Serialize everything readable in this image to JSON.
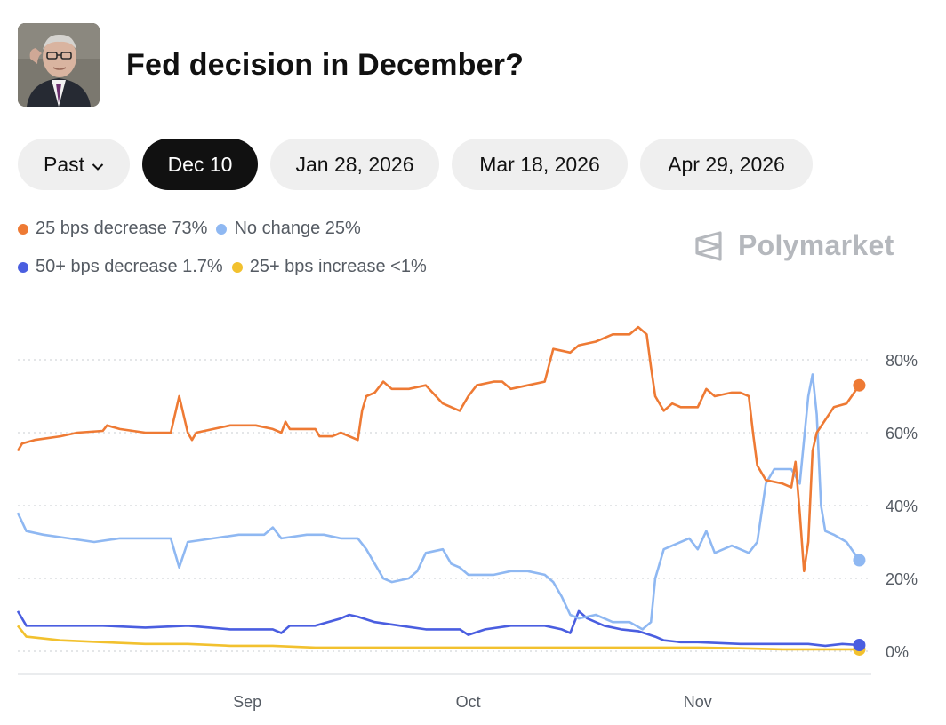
{
  "header": {
    "title": "Fed decision in December?",
    "avatar_alt": "Jerome Powell portrait"
  },
  "tabs": [
    {
      "label": "Past",
      "has_chevron": true,
      "active": false
    },
    {
      "label": "Dec 10",
      "active": true
    },
    {
      "label": "Jan 28, 2026",
      "active": false
    },
    {
      "label": "Mar 18, 2026",
      "active": false
    },
    {
      "label": "Apr 29, 2026",
      "active": false
    }
  ],
  "legend": [
    {
      "label": "25 bps decrease 73%",
      "color": "#ee7a34"
    },
    {
      "label": "No change 25%",
      "color": "#8fb8f2"
    },
    {
      "label": "50+ bps decrease 1.7%",
      "color": "#4a5ee0"
    },
    {
      "label": "25+ bps increase <1%",
      "color": "#f2c12e"
    }
  ],
  "brand": {
    "name": "Polymarket",
    "icon": "polymarket-logo-icon"
  },
  "chart_data": {
    "type": "line",
    "title": "Fed decision in December?",
    "y_ticks": [
      "80%",
      "60%",
      "40%",
      "20%",
      "0%"
    ],
    "ylim": [
      0,
      100
    ],
    "x_ticks": [
      {
        "label": "Sep",
        "t": 0.27
      },
      {
        "label": "Oct",
        "t": 0.53
      },
      {
        "label": "Nov",
        "t": 0.8
      }
    ],
    "grid": true,
    "series": [
      {
        "name": "25 bps decrease",
        "color": "#ee7a34",
        "last": 73,
        "points": [
          [
            0,
            55
          ],
          [
            0.005,
            57
          ],
          [
            0.02,
            58
          ],
          [
            0.05,
            59
          ],
          [
            0.07,
            60
          ],
          [
            0.1,
            60.5
          ],
          [
            0.105,
            62
          ],
          [
            0.12,
            61
          ],
          [
            0.15,
            60
          ],
          [
            0.18,
            60
          ],
          [
            0.19,
            70
          ],
          [
            0.2,
            60
          ],
          [
            0.205,
            58
          ],
          [
            0.21,
            60
          ],
          [
            0.23,
            61
          ],
          [
            0.25,
            62
          ],
          [
            0.28,
            62
          ],
          [
            0.3,
            61
          ],
          [
            0.31,
            60
          ],
          [
            0.315,
            63
          ],
          [
            0.32,
            61
          ],
          [
            0.35,
            61
          ],
          [
            0.355,
            59
          ],
          [
            0.37,
            59
          ],
          [
            0.38,
            60
          ],
          [
            0.4,
            58
          ],
          [
            0.405,
            66
          ],
          [
            0.41,
            70
          ],
          [
            0.42,
            71
          ],
          [
            0.43,
            74
          ],
          [
            0.44,
            72
          ],
          [
            0.46,
            72
          ],
          [
            0.48,
            73
          ],
          [
            0.5,
            68
          ],
          [
            0.52,
            66
          ],
          [
            0.53,
            70
          ],
          [
            0.54,
            73
          ],
          [
            0.56,
            74
          ],
          [
            0.57,
            74
          ],
          [
            0.58,
            72
          ],
          [
            0.6,
            73
          ],
          [
            0.62,
            74
          ],
          [
            0.63,
            83
          ],
          [
            0.65,
            82
          ],
          [
            0.66,
            84
          ],
          [
            0.68,
            85
          ],
          [
            0.7,
            87
          ],
          [
            0.72,
            87
          ],
          [
            0.73,
            89
          ],
          [
            0.74,
            87
          ],
          [
            0.745,
            78
          ],
          [
            0.75,
            70
          ],
          [
            0.76,
            66
          ],
          [
            0.77,
            68
          ],
          [
            0.78,
            67
          ],
          [
            0.8,
            67
          ],
          [
            0.81,
            72
          ],
          [
            0.82,
            70
          ],
          [
            0.84,
            71
          ],
          [
            0.85,
            71
          ],
          [
            0.86,
            70
          ],
          [
            0.865,
            60
          ],
          [
            0.87,
            51
          ],
          [
            0.88,
            47
          ],
          [
            0.9,
            46
          ],
          [
            0.91,
            45
          ],
          [
            0.915,
            52
          ],
          [
            0.92,
            38
          ],
          [
            0.925,
            22
          ],
          [
            0.93,
            30
          ],
          [
            0.935,
            55
          ],
          [
            0.94,
            60
          ],
          [
            0.96,
            67
          ],
          [
            0.975,
            68
          ],
          [
            0.99,
            73
          ]
        ]
      },
      {
        "name": "No change",
        "color": "#8fb8f2",
        "last": 25,
        "points": [
          [
            0,
            38
          ],
          [
            0.01,
            33
          ],
          [
            0.03,
            32
          ],
          [
            0.06,
            31
          ],
          [
            0.09,
            30
          ],
          [
            0.12,
            31
          ],
          [
            0.15,
            31
          ],
          [
            0.18,
            31
          ],
          [
            0.19,
            23
          ],
          [
            0.2,
            30
          ],
          [
            0.23,
            31
          ],
          [
            0.26,
            32
          ],
          [
            0.29,
            32
          ],
          [
            0.3,
            34
          ],
          [
            0.31,
            31
          ],
          [
            0.34,
            32
          ],
          [
            0.36,
            32
          ],
          [
            0.38,
            31
          ],
          [
            0.4,
            31
          ],
          [
            0.41,
            28
          ],
          [
            0.42,
            24
          ],
          [
            0.43,
            20
          ],
          [
            0.44,
            19
          ],
          [
            0.46,
            20
          ],
          [
            0.47,
            22
          ],
          [
            0.48,
            27
          ],
          [
            0.5,
            28
          ],
          [
            0.51,
            24
          ],
          [
            0.52,
            23
          ],
          [
            0.53,
            21
          ],
          [
            0.56,
            21
          ],
          [
            0.58,
            22
          ],
          [
            0.6,
            22
          ],
          [
            0.62,
            21
          ],
          [
            0.63,
            19
          ],
          [
            0.64,
            15
          ],
          [
            0.65,
            10
          ],
          [
            0.66,
            9
          ],
          [
            0.68,
            10
          ],
          [
            0.7,
            8
          ],
          [
            0.72,
            8
          ],
          [
            0.735,
            6
          ],
          [
            0.745,
            8
          ],
          [
            0.75,
            20
          ],
          [
            0.76,
            28
          ],
          [
            0.77,
            29
          ],
          [
            0.79,
            31
          ],
          [
            0.8,
            28
          ],
          [
            0.81,
            33
          ],
          [
            0.82,
            27
          ],
          [
            0.84,
            29
          ],
          [
            0.86,
            27
          ],
          [
            0.87,
            30
          ],
          [
            0.875,
            38
          ],
          [
            0.88,
            46
          ],
          [
            0.89,
            50
          ],
          [
            0.91,
            50
          ],
          [
            0.92,
            46
          ],
          [
            0.93,
            70
          ],
          [
            0.935,
            76
          ],
          [
            0.94,
            65
          ],
          [
            0.945,
            40
          ],
          [
            0.95,
            33
          ],
          [
            0.96,
            32
          ],
          [
            0.975,
            30
          ],
          [
            0.99,
            25
          ]
        ]
      },
      {
        "name": "50+ bps decrease",
        "color": "#4a5ee0",
        "last": 1.7,
        "points": [
          [
            0,
            11
          ],
          [
            0.01,
            7
          ],
          [
            0.05,
            7
          ],
          [
            0.1,
            7
          ],
          [
            0.15,
            6.5
          ],
          [
            0.2,
            7
          ],
          [
            0.25,
            6
          ],
          [
            0.3,
            6
          ],
          [
            0.31,
            5
          ],
          [
            0.32,
            7
          ],
          [
            0.35,
            7
          ],
          [
            0.38,
            9
          ],
          [
            0.39,
            10
          ],
          [
            0.4,
            9.5
          ],
          [
            0.42,
            8
          ],
          [
            0.45,
            7
          ],
          [
            0.48,
            6
          ],
          [
            0.5,
            6
          ],
          [
            0.52,
            6
          ],
          [
            0.53,
            4.5
          ],
          [
            0.55,
            6
          ],
          [
            0.58,
            7
          ],
          [
            0.62,
            7
          ],
          [
            0.64,
            6
          ],
          [
            0.65,
            5
          ],
          [
            0.66,
            11
          ],
          [
            0.67,
            9
          ],
          [
            0.69,
            7
          ],
          [
            0.71,
            6
          ],
          [
            0.73,
            5.5
          ],
          [
            0.75,
            4
          ],
          [
            0.76,
            3
          ],
          [
            0.78,
            2.5
          ],
          [
            0.8,
            2.5
          ],
          [
            0.85,
            2
          ],
          [
            0.9,
            2
          ],
          [
            0.93,
            2
          ],
          [
            0.95,
            1.5
          ],
          [
            0.97,
            2
          ],
          [
            0.99,
            1.7
          ]
        ]
      },
      {
        "name": "25+ bps increase",
        "color": "#f2c12e",
        "last": 0.5,
        "points": [
          [
            0,
            7
          ],
          [
            0.01,
            4
          ],
          [
            0.05,
            3
          ],
          [
            0.1,
            2.5
          ],
          [
            0.15,
            2
          ],
          [
            0.2,
            2
          ],
          [
            0.25,
            1.5
          ],
          [
            0.3,
            1.5
          ],
          [
            0.35,
            1
          ],
          [
            0.4,
            1
          ],
          [
            0.45,
            1
          ],
          [
            0.5,
            1
          ],
          [
            0.55,
            1
          ],
          [
            0.6,
            1
          ],
          [
            0.65,
            1
          ],
          [
            0.7,
            1
          ],
          [
            0.75,
            1
          ],
          [
            0.8,
            1
          ],
          [
            0.85,
            0.8
          ],
          [
            0.9,
            0.5
          ],
          [
            0.95,
            0.5
          ],
          [
            0.99,
            0.5
          ]
        ]
      }
    ]
  }
}
